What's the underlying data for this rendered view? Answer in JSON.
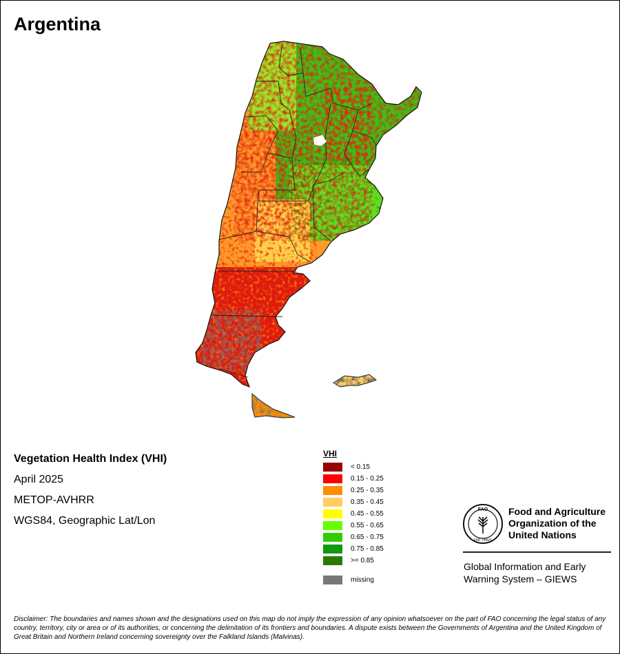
{
  "map_title": "Argentina",
  "info": {
    "product": "Vegetation Health Index (VHI)",
    "date": "April 2025",
    "sensor": "METOP-AVHRR",
    "projection": "WGS84, Geographic Lat/Lon"
  },
  "legend": {
    "title": "VHI",
    "classes": [
      {
        "label": "< 0.15",
        "color": "#990000"
      },
      {
        "label": "0.15 - 0.25",
        "color": "#ff0000"
      },
      {
        "label": "0.25 - 0.35",
        "color": "#ff8c00"
      },
      {
        "label": "0.35 - 0.45",
        "color": "#ffcc66"
      },
      {
        "label": "0.45 - 0.55",
        "color": "#ffff00"
      },
      {
        "label": "0.55 - 0.65",
        "color": "#66ff00"
      },
      {
        "label": "0.65 - 0.75",
        "color": "#33cc00"
      },
      {
        "label": "0.75 - 0.85",
        "color": "#119911"
      },
      {
        "label": ">= 0.85",
        "color": "#2a7a00"
      }
    ],
    "missing": {
      "label": "missing",
      "color": "#777777"
    }
  },
  "organization": {
    "name_line1": "Food and Agriculture",
    "name_line2": "Organization of the",
    "name_line3": "United Nations",
    "logo_letters": "FAO",
    "logo_motto": "FIAT PANIS",
    "system_line1": "Global Information and Early",
    "system_line2": "Warning System – GIEWS"
  },
  "disclaimer": "Disclaimer: The boundaries and names shown and the designations used on this map do not imply the expression of any opinion whatsoever on the part of FAO concerning the legal status of any country, territory, city or area or of its authorities, or concerning the delimitation of its frontiers and boundaries. A dispute exists between the Governments of Argentina and the United Kingdom of Great Britain and Northern Ireland concerning sovereignty over the Falkland Islands (Malvinas)."
}
